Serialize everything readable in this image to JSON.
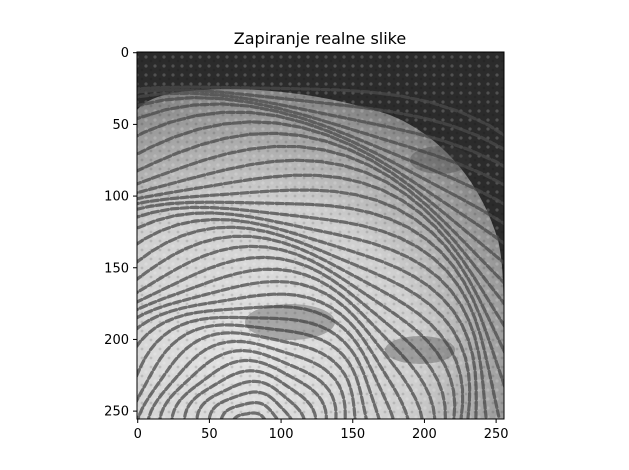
{
  "figure": {
    "title": "Zapiranje realne slike",
    "image_description_icon": "fingerprint-image",
    "colormap": "gray",
    "x_axis": {
      "range": [
        0,
        255
      ],
      "ticks": [
        0,
        50,
        100,
        150,
        200,
        250
      ],
      "tick_labels": [
        "0",
        "50",
        "100",
        "150",
        "200",
        "250"
      ]
    },
    "y_axis": {
      "range": [
        0,
        255
      ],
      "inverted": true,
      "ticks": [
        0,
        50,
        100,
        150,
        200,
        250
      ],
      "tick_labels": [
        "0",
        "50",
        "100",
        "150",
        "200",
        "250"
      ]
    },
    "colors": {
      "background_dark": "#2b2b2b",
      "ridge_light": "#e2e2e2",
      "ridge_dark": "#3a3a3a",
      "axis": "#000000"
    }
  }
}
